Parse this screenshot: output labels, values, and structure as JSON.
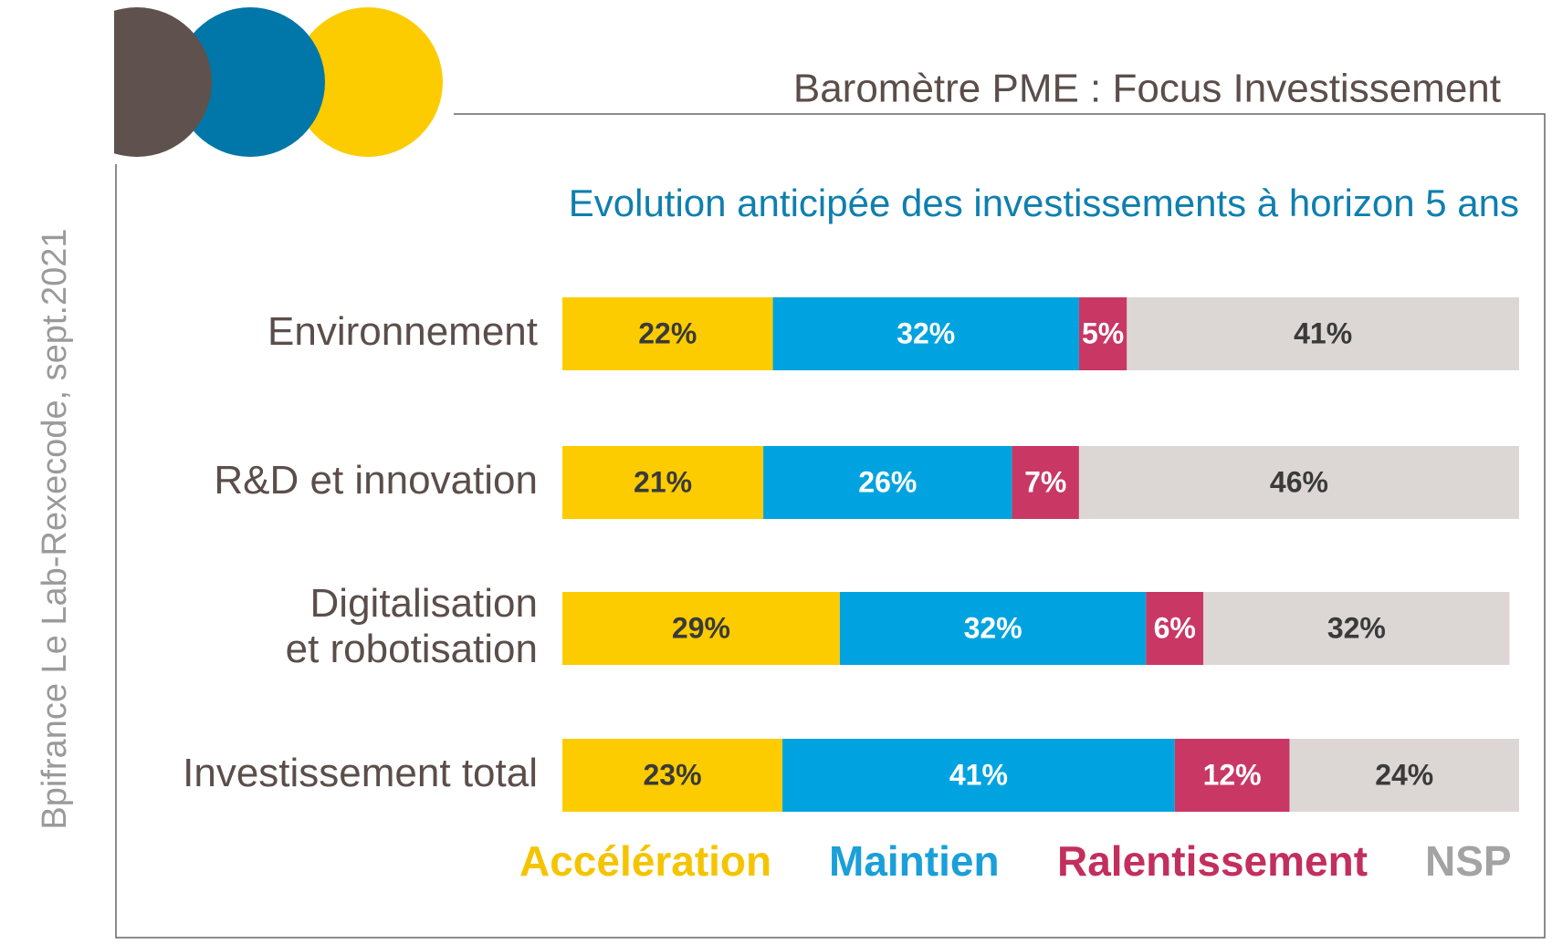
{
  "header": "Baromètre PME : Focus Investissement",
  "source": "Bpifrance Le Lab-Rexecode, sept.2021",
  "chart_data": {
    "type": "stacked-bar-horizontal",
    "title": "Evolution anticipée des investissements à horizon 5 ans",
    "categories": [
      [
        "Environnement"
      ],
      [
        "R&D et innovation"
      ],
      [
        "Digitalisation",
        "et robotisation"
      ],
      [
        "Investissement total"
      ]
    ],
    "xlim": [
      0,
      100
    ],
    "series": [
      {
        "name": "Accélération",
        "color": "#fccc00",
        "label_color": "#3a3a3a",
        "legend_color": "#f5c400",
        "values": [
          22,
          21,
          29,
          23
        ],
        "value_labels": [
          "22%",
          "21%",
          "29%",
          "23%"
        ]
      },
      {
        "name": "Maintien",
        "color": "#00a3e0",
        "label_color": "#ffffff",
        "legend_color": "#1a9fd9",
        "values": [
          32,
          26,
          32,
          41
        ],
        "value_labels": [
          "32%",
          "26%",
          "32%",
          "41%"
        ]
      },
      {
        "name": "Ralentissement",
        "color": "#c93765",
        "label_color": "#ffffff",
        "legend_color": "#c22f5f",
        "values": [
          5,
          7,
          6,
          12
        ],
        "value_labels": [
          "5%",
          "7%",
          "6%",
          "12%"
        ]
      },
      {
        "name": "NSP",
        "color": "#dcd7d5",
        "label_color": "#3a3a3a",
        "legend_color": "#a3a3a3",
        "values": [
          41,
          46,
          32,
          24
        ],
        "value_labels": [
          "41%",
          "46%",
          "32%",
          "24%"
        ]
      }
    ],
    "legend": "bottom"
  }
}
